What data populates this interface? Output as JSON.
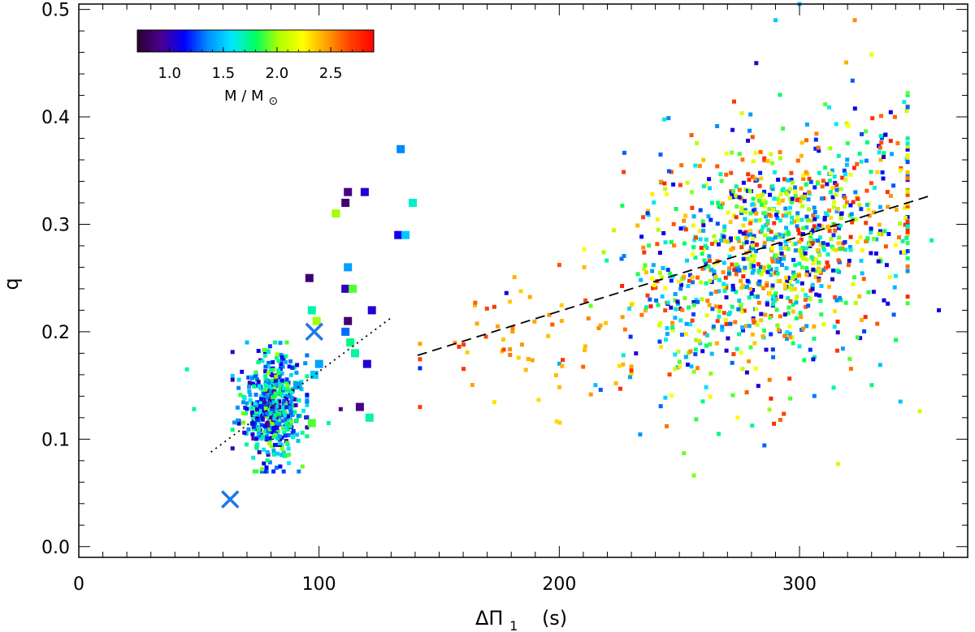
{
  "chart_data": {
    "type": "scatter",
    "xlabel_main": "ΔΠ",
    "xlabel_sub": "1",
    "xlabel_unit": "(s)",
    "ylabel": "q",
    "xlim": [
      0,
      370
    ],
    "ylim": [
      -0.01,
      0.505
    ],
    "xticks": [
      0,
      100,
      200,
      300
    ],
    "xtick_labels": [
      "0",
      "100",
      "200",
      "300"
    ],
    "yticks": [
      0.0,
      0.1,
      0.2,
      0.3,
      0.4,
      0.5
    ],
    "ytick_labels": [
      "0.0",
      "0.1",
      "0.2",
      "0.3",
      "0.4",
      "0.5"
    ],
    "colorbar": {
      "title_main": "M / M",
      "title_symbol": "⊙",
      "range": [
        0.7,
        2.9
      ],
      "ticks": [
        1.0,
        1.5,
        2.0,
        2.5
      ],
      "tick_labels": [
        "1.0",
        "1.5",
        "2.0",
        "2.5"
      ],
      "colors": [
        "#2a0030",
        "#4b0090",
        "#0000ff",
        "#0090ff",
        "#00e8ff",
        "#00ff60",
        "#b0ff00",
        "#ffff00",
        "#ffa000",
        "#ff4000",
        "#ff0000"
      ]
    },
    "big_points": [
      {
        "x": 96,
        "y": 0.25,
        "m": 0.85
      },
      {
        "x": 111,
        "y": 0.32,
        "m": 0.85
      },
      {
        "x": 112,
        "y": 0.33,
        "m": 0.9
      },
      {
        "x": 119,
        "y": 0.33,
        "m": 1.05
      },
      {
        "x": 134,
        "y": 0.37,
        "m": 1.35
      },
      {
        "x": 133,
        "y": 0.29,
        "m": 1.1
      },
      {
        "x": 136,
        "y": 0.29,
        "m": 1.5
      },
      {
        "x": 139,
        "y": 0.32,
        "m": 1.65
      },
      {
        "x": 107,
        "y": 0.31,
        "m": 2.0
      },
      {
        "x": 111,
        "y": 0.24,
        "m": 1.0
      },
      {
        "x": 112,
        "y": 0.26,
        "m": 1.4
      },
      {
        "x": 114,
        "y": 0.24,
        "m": 1.9
      },
      {
        "x": 97,
        "y": 0.22,
        "m": 1.7
      },
      {
        "x": 99,
        "y": 0.21,
        "m": 2.0
      },
      {
        "x": 112,
        "y": 0.21,
        "m": 0.85
      },
      {
        "x": 122,
        "y": 0.22,
        "m": 1.05
      },
      {
        "x": 111,
        "y": 0.2,
        "m": 1.3
      },
      {
        "x": 113,
        "y": 0.19,
        "m": 1.75
      },
      {
        "x": 115,
        "y": 0.18,
        "m": 1.7
      },
      {
        "x": 100,
        "y": 0.17,
        "m": 1.4
      },
      {
        "x": 120,
        "y": 0.17,
        "m": 1.05
      },
      {
        "x": 98,
        "y": 0.16,
        "m": 1.5
      },
      {
        "x": 91,
        "y": 0.15,
        "m": 1.4
      },
      {
        "x": 117,
        "y": 0.13,
        "m": 0.9
      },
      {
        "x": 121,
        "y": 0.12,
        "m": 1.7
      },
      {
        "x": 97,
        "y": 0.115,
        "m": 1.9
      }
    ],
    "observed_markers": [
      {
        "x": 63,
        "y": 0.044
      },
      {
        "x": 98,
        "y": 0.2
      }
    ],
    "fit_lines": [
      {
        "name": "low-mass fit",
        "style": "dotted",
        "x": [
          55,
          130
        ],
        "y": [
          0.088,
          0.213
        ]
      },
      {
        "name": "high-mass fit",
        "style": "dashed",
        "x": [
          141,
          355
        ],
        "y": [
          0.178,
          0.327
        ]
      }
    ],
    "clusters": [
      {
        "name": "low-mass cluster",
        "n": 520,
        "x_mean": 80,
        "x_sd": 6.5,
        "y_mean": 0.13,
        "y_sd": 0.025,
        "x_range": [
          64,
          95
        ],
        "y_range": [
          0.07,
          0.19
        ],
        "m_range": [
          0.9,
          2.0
        ]
      },
      {
        "name": "high-mass cluster",
        "n": 1150,
        "x_mean": 290,
        "x_sd": 30,
        "y_mean": 0.275,
        "y_sd": 0.055,
        "x_range": [
          200,
          345
        ],
        "y_range": [
          0.09,
          0.43
        ],
        "m_range": [
          1.0,
          2.8
        ]
      },
      {
        "name": "transition points",
        "n": 60,
        "x_mean": 185,
        "x_sd": 25,
        "y_mean": 0.19,
        "y_sd": 0.035,
        "x_range": [
          142,
          230
        ],
        "y_range": [
          0.11,
          0.26
        ],
        "m_range": [
          2.3,
          2.75
        ]
      }
    ],
    "outliers": [
      {
        "x": 45,
        "y": 0.165,
        "m": 1.7
      },
      {
        "x": 48,
        "y": 0.128,
        "m": 1.7
      },
      {
        "x": 104,
        "y": 0.115,
        "m": 1.7
      },
      {
        "x": 109,
        "y": 0.128,
        "m": 0.9
      },
      {
        "x": 142,
        "y": 0.166,
        "m": 1.2
      },
      {
        "x": 178,
        "y": 0.236,
        "m": 1.05
      },
      {
        "x": 165,
        "y": 0.227,
        "m": 2.6
      },
      {
        "x": 290,
        "y": 0.49,
        "m": 1.5
      },
      {
        "x": 282,
        "y": 0.45,
        "m": 1.0
      },
      {
        "x": 300,
        "y": 0.505,
        "m": 1.5
      },
      {
        "x": 323,
        "y": 0.49,
        "m": 2.5
      },
      {
        "x": 358,
        "y": 0.22,
        "m": 1.1
      },
      {
        "x": 355,
        "y": 0.285,
        "m": 1.7
      },
      {
        "x": 342,
        "y": 0.135,
        "m": 1.5
      },
      {
        "x": 350,
        "y": 0.126,
        "m": 2.1
      },
      {
        "x": 316,
        "y": 0.077,
        "m": 2.1
      },
      {
        "x": 292,
        "y": 0.118,
        "m": 2.6
      }
    ]
  }
}
